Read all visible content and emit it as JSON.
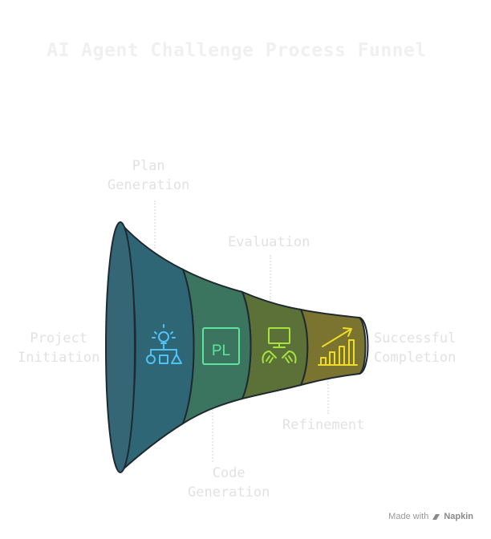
{
  "title": "AI Agent Challenge Process Funnel",
  "stages": [
    {
      "label_lines": [
        "Plan",
        "Generation"
      ],
      "icon": "lightbulb-flowchart-icon",
      "color": "#2e6676"
    },
    {
      "label_lines": [
        "Code",
        "Generation"
      ],
      "icon": "code-editor-icon",
      "color": "#3b7560",
      "icon_text": "PL"
    },
    {
      "label_lines": [
        "Evaluation"
      ],
      "icon": "monitor-hands-icon",
      "color": "#5c7138"
    },
    {
      "label_lines": [
        "Refinement"
      ],
      "icon": "growth-chart-icon",
      "color": "#7a7430"
    }
  ],
  "start_label": [
    "Project",
    "Initiation"
  ],
  "end_label": [
    "Successful",
    "Completion"
  ],
  "colors": {
    "mouth": "#346676",
    "stroke": "#1f2a30",
    "icon_blue": "#4fc3f7",
    "icon_green": "#5ee3a1",
    "icon_lime": "#a6e33e",
    "icon_yellow": "#f0dc26"
  },
  "footer": {
    "made_with": "Made with",
    "brand": "Napkin"
  }
}
